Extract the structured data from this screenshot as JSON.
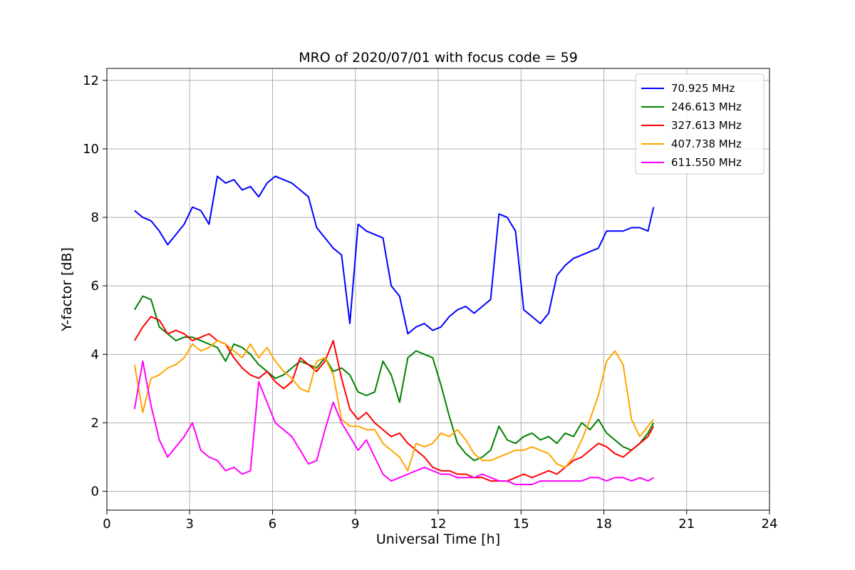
{
  "chart_data": {
    "type": "line",
    "title": "MRO of 2020/07/01 with focus code = 59",
    "xlabel": "Universal Time [h]",
    "ylabel": "Y-factor [dB]",
    "xlim": [
      0,
      24
    ],
    "ylim": [
      -0.55,
      12.35
    ],
    "xticks": [
      0,
      3,
      6,
      9,
      12,
      15,
      18,
      21,
      24
    ],
    "yticks": [
      0,
      2,
      4,
      6,
      8,
      10,
      12
    ],
    "grid": true,
    "legend_position": "top-right",
    "series": [
      {
        "name": " 70.925 MHz",
        "color": "#0000ff",
        "x": [
          1.0,
          1.3,
          1.6,
          1.9,
          2.2,
          2.5,
          2.8,
          3.1,
          3.4,
          3.7,
          4.0,
          4.3,
          4.6,
          4.9,
          5.2,
          5.5,
          5.8,
          6.1,
          6.4,
          6.7,
          7.0,
          7.3,
          7.6,
          7.9,
          8.2,
          8.5,
          8.8,
          9.1,
          9.4,
          9.7,
          10.0,
          10.3,
          10.6,
          10.9,
          11.2,
          11.5,
          11.8,
          12.1,
          12.4,
          12.7,
          13.0,
          13.3,
          13.6,
          13.9,
          14.2,
          14.5,
          14.8,
          15.1,
          15.4,
          15.7,
          16.0,
          16.3,
          16.6,
          16.9,
          17.2,
          17.5,
          17.8,
          18.1,
          18.4,
          18.7,
          19.0,
          19.3,
          19.6,
          19.8
        ],
        "y": [
          8.2,
          8.0,
          7.9,
          7.6,
          7.2,
          7.5,
          7.8,
          8.3,
          8.2,
          7.8,
          9.2,
          9.0,
          9.1,
          8.8,
          8.9,
          8.6,
          9.0,
          9.2,
          9.1,
          9.0,
          8.8,
          8.6,
          7.7,
          7.4,
          7.1,
          6.9,
          4.9,
          7.8,
          7.6,
          7.5,
          7.4,
          6.0,
          5.7,
          4.6,
          4.8,
          4.9,
          4.7,
          4.8,
          5.1,
          5.3,
          5.4,
          5.2,
          5.4,
          5.6,
          8.1,
          8.0,
          7.6,
          5.3,
          5.1,
          4.9,
          5.2,
          6.3,
          6.6,
          6.8,
          6.9,
          7.0,
          7.1,
          7.6,
          7.6,
          7.6,
          7.7,
          7.7,
          7.6,
          8.3
        ]
      },
      {
        "name": "246.613 MHz",
        "color": "#008000",
        "x": [
          1.0,
          1.3,
          1.6,
          1.9,
          2.2,
          2.5,
          2.8,
          3.1,
          3.4,
          3.7,
          4.0,
          4.3,
          4.6,
          4.9,
          5.2,
          5.5,
          5.8,
          6.1,
          6.4,
          6.7,
          7.0,
          7.3,
          7.6,
          7.9,
          8.2,
          8.5,
          8.8,
          9.1,
          9.4,
          9.7,
          10.0,
          10.3,
          10.6,
          10.9,
          11.2,
          11.5,
          11.8,
          12.1,
          12.4,
          12.7,
          13.0,
          13.3,
          13.6,
          13.9,
          14.2,
          14.5,
          14.8,
          15.1,
          15.4,
          15.7,
          16.0,
          16.3,
          16.6,
          16.9,
          17.2,
          17.5,
          17.8,
          18.1,
          18.4,
          18.7,
          19.0,
          19.3,
          19.6,
          19.8
        ],
        "y": [
          5.3,
          5.7,
          5.6,
          4.8,
          4.6,
          4.4,
          4.5,
          4.5,
          4.4,
          4.3,
          4.2,
          3.8,
          4.3,
          4.2,
          4.0,
          3.7,
          3.5,
          3.3,
          3.4,
          3.6,
          3.8,
          3.7,
          3.6,
          3.9,
          3.5,
          3.6,
          3.4,
          2.9,
          2.8,
          2.9,
          3.8,
          3.4,
          2.6,
          3.9,
          4.1,
          4.0,
          3.9,
          3.1,
          2.2,
          1.4,
          1.1,
          0.9,
          1.0,
          1.2,
          1.9,
          1.5,
          1.4,
          1.6,
          1.7,
          1.5,
          1.6,
          1.4,
          1.7,
          1.6,
          2.0,
          1.8,
          2.1,
          1.7,
          1.5,
          1.3,
          1.2,
          1.4,
          1.7,
          2.0
        ]
      },
      {
        "name": "327.613 MHz",
        "color": "#ff0000",
        "x": [
          1.0,
          1.3,
          1.6,
          1.9,
          2.2,
          2.5,
          2.8,
          3.1,
          3.4,
          3.7,
          4.0,
          4.3,
          4.6,
          4.9,
          5.2,
          5.5,
          5.8,
          6.1,
          6.4,
          6.7,
          7.0,
          7.3,
          7.6,
          7.9,
          8.2,
          8.5,
          8.8,
          9.1,
          9.4,
          9.7,
          10.0,
          10.3,
          10.6,
          10.9,
          11.2,
          11.5,
          11.8,
          12.1,
          12.4,
          12.7,
          13.0,
          13.3,
          13.6,
          13.9,
          14.2,
          14.5,
          14.8,
          15.1,
          15.4,
          15.7,
          16.0,
          16.3,
          16.6,
          16.9,
          17.2,
          17.5,
          17.8,
          18.1,
          18.4,
          18.7,
          19.0,
          19.3,
          19.6,
          19.8
        ],
        "y": [
          4.4,
          4.8,
          5.1,
          5.0,
          4.6,
          4.7,
          4.6,
          4.4,
          4.5,
          4.6,
          4.4,
          4.3,
          3.9,
          3.6,
          3.4,
          3.3,
          3.5,
          3.2,
          3.0,
          3.2,
          3.9,
          3.7,
          3.5,
          3.8,
          4.4,
          3.3,
          2.4,
          2.1,
          2.3,
          2.0,
          1.8,
          1.6,
          1.7,
          1.4,
          1.2,
          1.0,
          0.7,
          0.6,
          0.6,
          0.5,
          0.5,
          0.4,
          0.4,
          0.3,
          0.3,
          0.3,
          0.4,
          0.5,
          0.4,
          0.5,
          0.6,
          0.5,
          0.7,
          0.9,
          1.0,
          1.2,
          1.4,
          1.3,
          1.1,
          1.0,
          1.2,
          1.4,
          1.6,
          1.9
        ]
      },
      {
        "name": "407.738 MHz",
        "color": "#ffa500",
        "x": [
          1.0,
          1.3,
          1.6,
          1.9,
          2.2,
          2.5,
          2.8,
          3.1,
          3.4,
          3.7,
          4.0,
          4.3,
          4.6,
          4.9,
          5.2,
          5.5,
          5.8,
          6.1,
          6.4,
          6.7,
          7.0,
          7.3,
          7.6,
          7.9,
          8.2,
          8.5,
          8.8,
          9.1,
          9.4,
          9.7,
          10.0,
          10.3,
          10.6,
          10.9,
          11.2,
          11.5,
          11.8,
          12.1,
          12.4,
          12.7,
          13.0,
          13.3,
          13.6,
          13.9,
          14.2,
          14.5,
          14.8,
          15.1,
          15.4,
          15.7,
          16.0,
          16.3,
          16.6,
          16.9,
          17.2,
          17.5,
          17.8,
          18.1,
          18.4,
          18.7,
          19.0,
          19.3,
          19.6,
          19.8
        ],
        "y": [
          3.7,
          2.3,
          3.3,
          3.4,
          3.6,
          3.7,
          3.9,
          4.3,
          4.1,
          4.2,
          4.4,
          4.3,
          4.1,
          3.9,
          4.3,
          3.9,
          4.2,
          3.8,
          3.5,
          3.3,
          3.0,
          2.9,
          3.8,
          3.9,
          3.4,
          2.1,
          1.9,
          1.9,
          1.8,
          1.8,
          1.4,
          1.2,
          1.0,
          0.6,
          1.4,
          1.3,
          1.4,
          1.7,
          1.6,
          1.8,
          1.5,
          1.1,
          0.9,
          0.9,
          1.0,
          1.1,
          1.2,
          1.2,
          1.3,
          1.2,
          1.1,
          0.8,
          0.7,
          1.0,
          1.5,
          2.1,
          2.8,
          3.8,
          4.1,
          3.7,
          2.1,
          1.6,
          1.9,
          2.1
        ]
      },
      {
        "name": "611.550 MHz",
        "color": "#ff00ff",
        "x": [
          1.0,
          1.3,
          1.6,
          1.9,
          2.2,
          2.5,
          2.8,
          3.1,
          3.4,
          3.7,
          4.0,
          4.3,
          4.6,
          4.9,
          5.2,
          5.5,
          5.8,
          6.1,
          6.4,
          6.7,
          7.0,
          7.3,
          7.6,
          7.9,
          8.2,
          8.5,
          8.8,
          9.1,
          9.4,
          9.7,
          10.0,
          10.3,
          10.6,
          10.9,
          11.2,
          11.5,
          11.8,
          12.1,
          12.4,
          12.7,
          13.0,
          13.3,
          13.6,
          13.9,
          14.2,
          14.5,
          14.8,
          15.1,
          15.4,
          15.7,
          16.0,
          16.3,
          16.6,
          16.9,
          17.2,
          17.5,
          17.8,
          18.1,
          18.4,
          18.7,
          19.0,
          19.3,
          19.6,
          19.8
        ],
        "y": [
          2.4,
          3.8,
          2.5,
          1.5,
          1.0,
          1.3,
          1.6,
          2.0,
          1.2,
          1.0,
          0.9,
          0.6,
          0.7,
          0.5,
          0.6,
          3.2,
          2.6,
          2.0,
          1.8,
          1.6,
          1.2,
          0.8,
          0.9,
          1.8,
          2.6,
          2.0,
          1.6,
          1.2,
          1.5,
          1.0,
          0.5,
          0.3,
          0.4,
          0.5,
          0.6,
          0.7,
          0.6,
          0.5,
          0.5,
          0.4,
          0.4,
          0.4,
          0.5,
          0.4,
          0.3,
          0.3,
          0.2,
          0.2,
          0.2,
          0.3,
          0.3,
          0.3,
          0.3,
          0.3,
          0.3,
          0.4,
          0.4,
          0.3,
          0.4,
          0.4,
          0.3,
          0.4,
          0.3,
          0.4
        ]
      }
    ]
  }
}
